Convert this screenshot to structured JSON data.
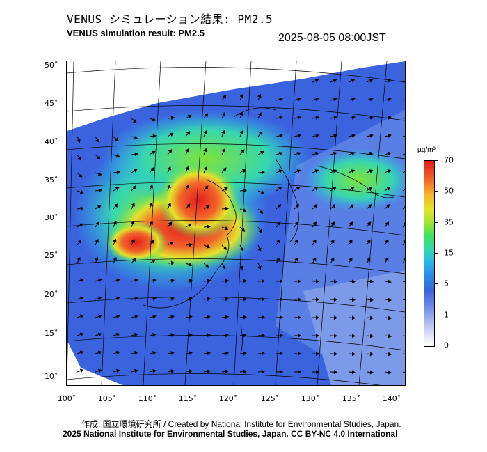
{
  "title": {
    "japanese": "VENUS シミュレーション結果: PM2.5",
    "english": "VENUS simulation result: PM2.5",
    "timestamp": "2025-08-05 08:00JST"
  },
  "map": {
    "variable": "PM2.5",
    "lon_range": [
      100,
      141
    ],
    "lat_range": [
      9,
      51
    ],
    "lat_ticks": [
      "50˚",
      "45˚",
      "40˚",
      "35˚",
      "30˚",
      "25˚",
      "20˚",
      "15˚",
      "10˚"
    ],
    "lon_ticks": [
      "100˚",
      "105˚",
      "110˚",
      "115˚",
      "120˚",
      "125˚",
      "130˚",
      "135˚",
      "140˚"
    ],
    "overlays": [
      "coastlines",
      "lat-lon-graticule",
      "wind-vectors"
    ]
  },
  "colorbar": {
    "unit": "µg/m³",
    "ticks": [
      "70",
      "50",
      "35",
      "15",
      "5",
      "1",
      "0"
    ],
    "tick_values": [
      70,
      50,
      35,
      15,
      5,
      1,
      0
    ],
    "color_low": "#ffffff",
    "color_mid": "#44e25a",
    "color_high": "#e41d1d"
  },
  "credits": {
    "line1": "作成: 国立環境研究所 / Created by National Institute for Environmental Studies, Japan.",
    "line2": "2025 National Institute for Environmental Studies, Japan. CC BY-NC 4.0 International"
  }
}
